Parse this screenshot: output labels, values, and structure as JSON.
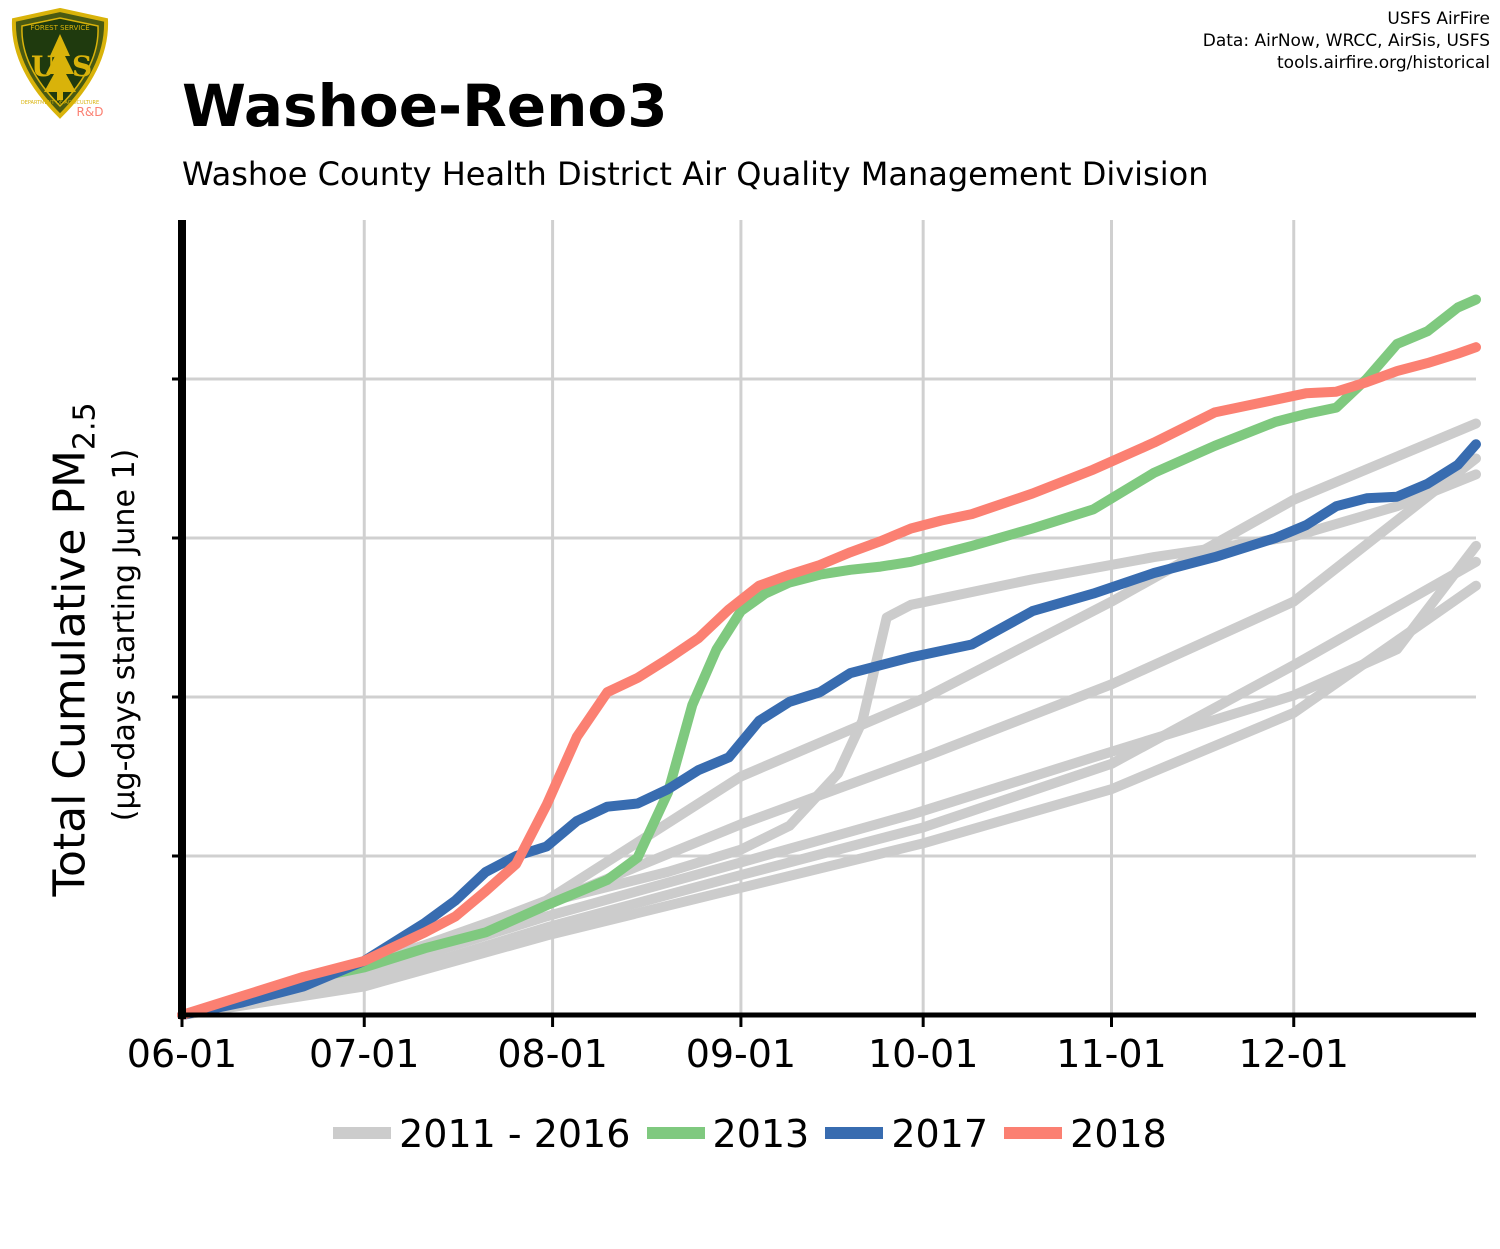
{
  "logo": {
    "top_text": "FOREST SERVICE",
    "letters": "US",
    "bottom_text": "DEPARTMENT OF AGRICULTURE",
    "badge": "R&D"
  },
  "credits": [
    "USFS AirFire",
    "Data: AirNow, WRCC, AirSis, USFS",
    "tools.airfire.org/historical"
  ],
  "title": "Washoe-Reno3",
  "subtitle": "Washoe County Health District Air Quality Management Division",
  "ylabel_main": "Total Cumulative PM",
  "ylabel_sub": "2.5",
  "ylabel_units": "(µg-days starting June 1)",
  "colors": {
    "background_years": "#cccccc",
    "y2013": "#7fc97f",
    "y2017": "#386cb0",
    "y2018": "#fb8072"
  },
  "chart_data": {
    "type": "line",
    "title": "Washoe-Reno3",
    "xlabel": "",
    "ylabel": "Total Cumulative PM2.5 (µg-days starting June 1)",
    "x_ticks": [
      "06-01",
      "07-01",
      "08-01",
      "09-01",
      "10-01",
      "11-01",
      "12-01"
    ],
    "x_tick_days": [
      0,
      30,
      61,
      92,
      122,
      153,
      183
    ],
    "xlim_days": [
      0,
      213
    ],
    "y_ticks_labeled": false,
    "ylim": [
      0,
      5
    ],
    "y_gridlines": [
      1,
      2,
      3,
      4
    ],
    "grid": true,
    "legend": {
      "placement": "bottom",
      "entries": [
        "2011 - 2016",
        "2013",
        "2017",
        "2018"
      ]
    },
    "series": [
      {
        "name": "2011 - 2016",
        "color": "#cccccc",
        "x": [
          0,
          20,
          40,
          60,
          80,
          92,
          100,
          108,
          112,
          116,
          120,
          140,
          160,
          183,
          200,
          213
        ],
        "y": [
          0,
          0.21,
          0.44,
          0.71,
          0.9,
          1.04,
          1.19,
          1.52,
          1.85,
          2.5,
          2.58,
          2.74,
          2.88,
          3.01,
          3.2,
          3.4
        ]
      },
      {
        "name": "2011 - 2016",
        "color": "#cccccc",
        "x": [
          0,
          30,
          60,
          92,
          120,
          150,
          183,
          200,
          213
        ],
        "y": [
          0,
          0.26,
          0.62,
          0.96,
          1.26,
          1.62,
          2.01,
          2.3,
          2.95
        ]
      },
      {
        "name": "2011 - 2016",
        "color": "#cccccc",
        "x": [
          0,
          30,
          60,
          92,
          122,
          153,
          183,
          213
        ],
        "y": [
          0,
          0.3,
          0.7,
          1.2,
          1.62,
          2.08,
          2.6,
          3.5
        ]
      },
      {
        "name": "2011 - 2016",
        "color": "#cccccc",
        "x": [
          0,
          30,
          60,
          92,
          122,
          153,
          183,
          213
        ],
        "y": [
          0,
          0.18,
          0.5,
          0.8,
          1.08,
          1.42,
          1.9,
          2.7
        ]
      },
      {
        "name": "2011 - 2016",
        "color": "#cccccc",
        "x": [
          0,
          30,
          60,
          92,
          122,
          153,
          183,
          213
        ],
        "y": [
          0,
          0.28,
          0.72,
          1.5,
          1.99,
          2.6,
          3.24,
          3.72
        ]
      },
      {
        "name": "2011 - 2016",
        "color": "#cccccc",
        "x": [
          0,
          30,
          60,
          92,
          122,
          153,
          183,
          213
        ],
        "y": [
          0,
          0.2,
          0.55,
          0.88,
          1.18,
          1.58,
          2.2,
          2.85
        ]
      },
      {
        "name": "2013",
        "color": "#7fc97f",
        "x": [
          0,
          10,
          20,
          30,
          40,
          50,
          60,
          70,
          75,
          80,
          84,
          88,
          92,
          96,
          100,
          105,
          110,
          115,
          120,
          125,
          130,
          140,
          150,
          160,
          170,
          180,
          185,
          190,
          195,
          200,
          205,
          210,
          213
        ],
        "y": [
          0,
          0.11,
          0.22,
          0.3,
          0.42,
          0.52,
          0.69,
          0.85,
          0.99,
          1.4,
          1.95,
          2.3,
          2.54,
          2.65,
          2.72,
          2.77,
          2.8,
          2.82,
          2.85,
          2.9,
          2.95,
          3.06,
          3.18,
          3.41,
          3.58,
          3.73,
          3.78,
          3.82,
          4.0,
          4.22,
          4.3,
          4.45,
          4.5
        ]
      },
      {
        "name": "2017",
        "color": "#386cb0",
        "x": [
          0,
          10,
          20,
          30,
          40,
          45,
          50,
          55,
          60,
          65,
          70,
          75,
          80,
          85,
          90,
          95,
          100,
          105,
          110,
          115,
          120,
          125,
          130,
          140,
          150,
          160,
          170,
          180,
          185,
          190,
          195,
          200,
          205,
          210,
          213
        ],
        "y": [
          0,
          0.08,
          0.18,
          0.34,
          0.58,
          0.72,
          0.9,
          1.0,
          1.06,
          1.22,
          1.31,
          1.33,
          1.42,
          1.54,
          1.62,
          1.85,
          1.97,
          2.03,
          2.15,
          2.2,
          2.25,
          2.29,
          2.33,
          2.54,
          2.65,
          2.78,
          2.88,
          3.0,
          3.08,
          3.2,
          3.25,
          3.26,
          3.34,
          3.46,
          3.59
        ]
      },
      {
        "name": "2018",
        "color": "#fb8072",
        "x": [
          0,
          10,
          20,
          30,
          40,
          45,
          50,
          55,
          60,
          65,
          70,
          75,
          80,
          85,
          90,
          95,
          100,
          105,
          110,
          115,
          120,
          125,
          130,
          140,
          150,
          160,
          170,
          180,
          185,
          190,
          195,
          200,
          205,
          210,
          213
        ],
        "y": [
          0,
          0.12,
          0.24,
          0.34,
          0.52,
          0.62,
          0.78,
          0.95,
          1.32,
          1.75,
          2.03,
          2.12,
          2.24,
          2.37,
          2.55,
          2.7,
          2.77,
          2.83,
          2.91,
          2.98,
          3.06,
          3.11,
          3.15,
          3.28,
          3.43,
          3.6,
          3.79,
          3.87,
          3.91,
          3.92,
          3.98,
          4.05,
          4.1,
          4.16,
          4.2
        ]
      }
    ]
  }
}
